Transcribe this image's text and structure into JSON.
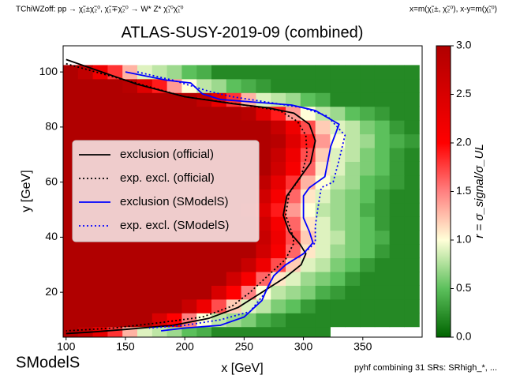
{
  "chart_data": {
    "type": "heatmap",
    "title": "ATLAS-SUSY-2019-09 (combined)",
    "subtitle_left": "TChiWZoff: pp → χ̃₁±χ̃₂⁰, χ̃₁∓χ̃₂⁰ → W* Z* χ̃₁⁰χ̃₁⁰",
    "subtitle_right": "x=m(χ̃₁±, χ̃₂⁰), x-y=m(χ̃₁⁰)",
    "footnote": "pyhf combining 31 SRs: SRhigh_*, ...",
    "logo": "SModelS",
    "x_label": "x [GeV]",
    "y_label": "y [GeV]",
    "colorbar_label": "r = σ_signal/σ_UL",
    "xlim": [
      97.5,
      400
    ],
    "ylim": [
      3.7,
      109.5
    ],
    "xticks": [
      100,
      150,
      200,
      250,
      300,
      350
    ],
    "yticks": [
      20,
      40,
      60,
      80,
      100
    ],
    "zlim": [
      0,
      3
    ],
    "zticks": [
      {
        "value": 0,
        "label": "0.0"
      },
      {
        "value": 0.5,
        "label": "0.5"
      },
      {
        "value": 1,
        "label": "1.0"
      },
      {
        "value": 1.5,
        "label": "1.5"
      },
      {
        "value": 2,
        "label": "2.0"
      },
      {
        "value": 2.5,
        "label": "2.5"
      },
      {
        "value": 3,
        "label": "3.0"
      }
    ],
    "colorscale": [
      [
        0,
        "#006400"
      ],
      [
        0.5,
        "#5cc05c"
      ],
      [
        1,
        "#ffffd8"
      ],
      [
        1.5,
        "#ff8080"
      ],
      [
        2,
        "#ff0000"
      ],
      [
        3,
        "#b00000"
      ]
    ],
    "legend": "center left",
    "x": [
      103.75,
      116.25,
      128.75,
      141.25,
      153.75,
      166.25,
      178.75,
      191.25,
      203.75,
      216.25,
      228.75,
      241.25,
      253.75,
      266.25,
      278.75,
      291.25,
      303.75,
      316.25,
      328.75,
      341.25,
      353.75,
      366.25,
      378.75,
      391.25
    ],
    "y": [
      5,
      10,
      15,
      20,
      25,
      30,
      35,
      40,
      45,
      50,
      55,
      60,
      65,
      70,
      75,
      80,
      85,
      90,
      95,
      100
    ],
    "z": [
      [
        3.0,
        2.8,
        2.3,
        1.8,
        1.3,
        0.9,
        0.8,
        0.7,
        0.5,
        0.4,
        0.2,
        0.2,
        0.2,
        0.2,
        0.2,
        0.2,
        0.2,
        0.2,
        null,
        null,
        null,
        null,
        null,
        null
      ],
      [
        3.0,
        3.0,
        3.0,
        3.0,
        3.0,
        3.0,
        2.5,
        2.0,
        1.5,
        1.0,
        0.8,
        0.7,
        0.6,
        0.4,
        0.3,
        0.2,
        0.2,
        0.2,
        0.2,
        0.2,
        0.2,
        0.2,
        0.2,
        0.2
      ],
      [
        3.0,
        3.0,
        3.0,
        3.0,
        3.0,
        3.0,
        3.0,
        3.0,
        2.7,
        2.2,
        1.7,
        1.2,
        0.9,
        0.8,
        0.6,
        0.5,
        0.3,
        0.2,
        0.2,
        0.2,
        0.2,
        0.2,
        0.2,
        0.2
      ],
      [
        3.0,
        3.0,
        3.0,
        3.0,
        3.0,
        3.0,
        3.0,
        3.0,
        3.0,
        3.0,
        2.5,
        2.0,
        1.5,
        1.0,
        0.8,
        0.7,
        0.6,
        0.4,
        0.3,
        0.2,
        0.2,
        0.2,
        0.2,
        0.2
      ],
      [
        3.0,
        3.0,
        3.0,
        3.0,
        3.0,
        3.0,
        3.0,
        3.0,
        3.0,
        3.0,
        3.0,
        2.6,
        2.1,
        1.6,
        1.1,
        0.9,
        0.7,
        0.6,
        0.5,
        0.3,
        0.2,
        0.2,
        0.2,
        0.2
      ],
      [
        3.0,
        3.0,
        3.0,
        3.0,
        3.0,
        3.0,
        3.0,
        3.0,
        3.0,
        3.0,
        3.0,
        3.0,
        2.7,
        2.2,
        1.7,
        1.2,
        0.9,
        0.8,
        0.6,
        0.5,
        0.3,
        0.2,
        0.2,
        0.2
      ],
      [
        3.0,
        3.0,
        3.0,
        3.0,
        3.0,
        3.0,
        3.0,
        3.0,
        3.0,
        3.0,
        3.0,
        3.0,
        3.0,
        2.6,
        2.1,
        1.6,
        1.1,
        0.9,
        0.7,
        0.6,
        0.5,
        0.3,
        0.2,
        0.2
      ],
      [
        3.0,
        3.0,
        3.0,
        3.0,
        3.0,
        3.0,
        3.0,
        3.0,
        3.0,
        3.0,
        3.0,
        3.0,
        3.0,
        2.7,
        2.2,
        1.7,
        1.2,
        0.9,
        0.8,
        0.6,
        0.5,
        0.4,
        0.2,
        0.2
      ],
      [
        3.0,
        3.0,
        3.0,
        3.0,
        3.0,
        3.0,
        3.0,
        3.0,
        3.0,
        3.0,
        3.0,
        3.0,
        3.0,
        2.6,
        2.1,
        1.6,
        1.1,
        0.9,
        0.7,
        0.6,
        0.5,
        0.3,
        0.2,
        0.2
      ],
      [
        3.0,
        3.0,
        3.0,
        3.0,
        3.0,
        3.0,
        3.0,
        3.0,
        3.0,
        3.0,
        3.0,
        3.0,
        2.9,
        2.4,
        1.9,
        1.4,
        1.0,
        0.8,
        0.7,
        0.6,
        0.4,
        0.3,
        0.2,
        0.2
      ],
      [
        3.0,
        3.0,
        3.0,
        3.0,
        3.0,
        3.0,
        3.0,
        3.0,
        3.0,
        3.0,
        3.0,
        3.0,
        3.0,
        2.6,
        2.1,
        1.6,
        1.1,
        0.9,
        0.7,
        0.6,
        0.5,
        0.3,
        0.2,
        0.2
      ],
      [
        3.0,
        3.0,
        3.0,
        3.0,
        3.0,
        3.0,
        3.0,
        3.0,
        3.0,
        3.0,
        3.0,
        3.0,
        3.0,
        2.8,
        2.3,
        1.8,
        1.3,
        1.0,
        0.8,
        0.7,
        0.5,
        0.4,
        0.3,
        0.2
      ],
      [
        3.0,
        3.0,
        3.0,
        3.0,
        3.0,
        3.0,
        3.0,
        3.0,
        3.0,
        3.0,
        3.0,
        3.0,
        3.0,
        3.0,
        2.6,
        2.1,
        1.6,
        1.1,
        0.9,
        0.7,
        0.6,
        0.5,
        0.3,
        0.2
      ],
      [
        3.0,
        3.0,
        3.0,
        3.0,
        3.0,
        3.0,
        3.0,
        3.0,
        3.0,
        3.0,
        3.0,
        3.0,
        3.0,
        3.0,
        2.7,
        2.2,
        1.7,
        1.2,
        0.9,
        0.8,
        0.6,
        0.5,
        0.3,
        0.2
      ],
      [
        3.0,
        3.0,
        3.0,
        3.0,
        3.0,
        3.0,
        3.0,
        3.0,
        3.0,
        3.0,
        3.0,
        3.0,
        3.0,
        3.0,
        2.9,
        2.4,
        1.9,
        1.4,
        1.0,
        0.8,
        0.7,
        0.5,
        0.4,
        0.3
      ],
      [
        3.0,
        3.0,
        3.0,
        3.0,
        3.0,
        3.0,
        3.0,
        3.0,
        3.0,
        3.0,
        3.0,
        3.0,
        3.0,
        3.0,
        2.7,
        2.2,
        1.7,
        1.2,
        0.9,
        0.8,
        0.6,
        0.5,
        0.3,
        0.2
      ],
      [
        3.0,
        3.0,
        3.0,
        3.0,
        3.0,
        3.0,
        3.0,
        3.0,
        3.0,
        3.0,
        3.0,
        3.0,
        2.9,
        2.4,
        1.9,
        1.4,
        1.0,
        0.8,
        0.7,
        0.5,
        0.4,
        0.3,
        0.2,
        0.2
      ],
      [
        3.0,
        3.0,
        3.0,
        3.0,
        3.0,
        3.0,
        3.0,
        3.0,
        3.0,
        2.8,
        2.3,
        1.8,
        1.3,
        0.9,
        0.8,
        0.7,
        0.5,
        0.4,
        0.2,
        0.2,
        0.2,
        0.2,
        0.2,
        0.2
      ],
      [
        3.0,
        3.0,
        3.0,
        3.0,
        2.9,
        2.4,
        1.9,
        1.4,
        1.0,
        0.8,
        0.7,
        0.5,
        0.4,
        0.3,
        0.2,
        0.2,
        0.2,
        0.2,
        0.2,
        0.2,
        0.2,
        0.2,
        0.2,
        0.2
      ],
      [
        3.0,
        2.8,
        2.2,
        1.8,
        1.3,
        0.9,
        0.8,
        0.7,
        0.5,
        0.4,
        0.2,
        0.2,
        0.2,
        0.2,
        0.2,
        0.2,
        0.2,
        0.2,
        0.2,
        0.2,
        0.2,
        0.2,
        0.2,
        0.2
      ]
    ],
    "series": [
      {
        "name": "exclusion (official)",
        "color": "#000000",
        "linestyle": "solid",
        "x": [
          100,
          130,
          160,
          200,
          240,
          270,
          292,
          305,
          310,
          306,
          296,
          286,
          283,
          288,
          297,
          302,
          298,
          285,
          265,
          245,
          220,
          190,
          150,
          120,
          100
        ],
        "y": [
          104.5,
          100,
          95.5,
          91,
          88.5,
          87,
          85,
          81,
          75,
          67,
          61,
          55,
          48,
          42,
          37.5,
          34,
          30,
          25.5,
          20,
          14.5,
          10.5,
          8,
          6.5,
          5.5,
          5
        ]
      },
      {
        "name": "exp. excl. (official)",
        "color": "#000000",
        "linestyle": "dotted",
        "x": [
          100,
          150,
          200,
          250,
          280,
          295,
          302,
          303,
          298,
          288,
          285,
          290,
          292,
          285,
          270,
          255,
          240,
          215,
          180,
          140,
          100
        ],
        "y": [
          103,
          97,
          91,
          88,
          86,
          82,
          77,
          70,
          62,
          56,
          48,
          42,
          38,
          32,
          26,
          20,
          15,
          11,
          9,
          7,
          6
        ]
      },
      {
        "name": "exclusion (SModelS)",
        "color": "#0000ff",
        "linestyle": "solid",
        "x": [
          150,
          185,
          205,
          215,
          230,
          260,
          290,
          310,
          330,
          323,
          318,
          305,
          300,
          300,
          305,
          308,
          300,
          285,
          275,
          270,
          265,
          250,
          230,
          200,
          180
        ],
        "y": [
          100,
          97,
          96,
          92,
          90,
          89,
          88,
          86,
          81,
          73,
          62,
          58,
          55,
          47,
          42,
          38,
          34,
          30,
          26,
          22,
          17,
          11,
          8,
          7,
          6
        ]
      },
      {
        "name": "exp. excl. (SModelS)",
        "color": "#0000ff",
        "linestyle": "dotted",
        "x": [
          160,
          190,
          220,
          240,
          270,
          300,
          320,
          335,
          330,
          325,
          315,
          312,
          310,
          310,
          300,
          285,
          275,
          268,
          255,
          230,
          200,
          170
        ],
        "y": [
          100,
          97,
          93,
          91,
          89,
          87,
          84,
          77,
          68,
          60,
          58,
          50,
          44,
          38,
          34,
          30,
          26,
          20,
          13,
          10,
          8,
          7
        ]
      }
    ]
  }
}
